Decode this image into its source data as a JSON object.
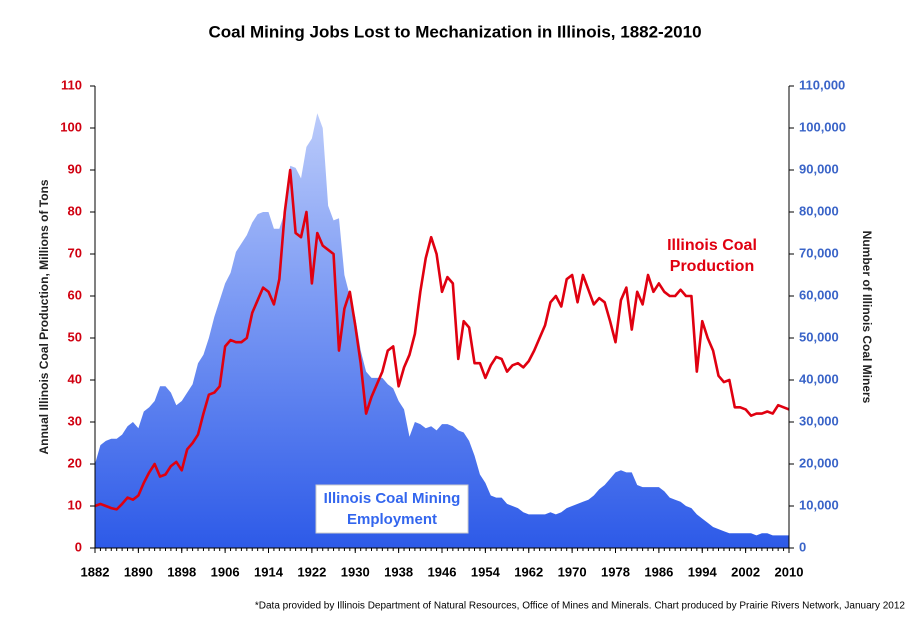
{
  "chart_data": {
    "type": "line_area",
    "title": "Coal Mining Jobs Lost to Mechanization in Illinois, 1882-2010",
    "ylabel": "Annual Illinois Coal Production, Millions of Tons",
    "y2label": "Number of Illinois Coal Miners",
    "footnote": "*Data provided by Illinois Department of Natural Resources, Office of Mines and Minerals. Chart produced by Prairie Rivers Network, January 2012",
    "x": [
      1882,
      1883,
      1884,
      1885,
      1886,
      1887,
      1888,
      1889,
      1890,
      1891,
      1892,
      1893,
      1894,
      1895,
      1896,
      1897,
      1898,
      1899,
      1900,
      1901,
      1902,
      1903,
      1904,
      1905,
      1906,
      1907,
      1908,
      1909,
      1910,
      1911,
      1912,
      1913,
      1914,
      1915,
      1916,
      1917,
      1918,
      1919,
      1920,
      1921,
      1922,
      1923,
      1924,
      1925,
      1926,
      1927,
      1928,
      1929,
      1930,
      1931,
      1932,
      1933,
      1934,
      1935,
      1936,
      1937,
      1938,
      1939,
      1940,
      1941,
      1942,
      1943,
      1944,
      1945,
      1946,
      1947,
      1948,
      1949,
      1950,
      1951,
      1952,
      1953,
      1954,
      1955,
      1956,
      1957,
      1958,
      1959,
      1960,
      1961,
      1962,
      1963,
      1964,
      1965,
      1966,
      1967,
      1968,
      1969,
      1970,
      1971,
      1972,
      1973,
      1974,
      1975,
      1976,
      1977,
      1978,
      1979,
      1980,
      1981,
      1982,
      1983,
      1984,
      1985,
      1986,
      1987,
      1988,
      1989,
      1990,
      1991,
      1992,
      1993,
      1994,
      1995,
      1996,
      1997,
      1998,
      1999,
      2000,
      2001,
      2002,
      2003,
      2004,
      2005,
      2006,
      2007,
      2008,
      2009,
      2010
    ],
    "xlim": [
      1882,
      2010
    ],
    "xticks": [
      1882,
      1890,
      1898,
      1906,
      1914,
      1922,
      1930,
      1938,
      1946,
      1954,
      1962,
      1970,
      1978,
      1986,
      1994,
      2002,
      2010
    ],
    "ylim": [
      0,
      110
    ],
    "yticks": [
      0,
      10,
      20,
      30,
      40,
      50,
      60,
      70,
      80,
      90,
      100,
      110
    ],
    "y2lim": [
      0,
      110000
    ],
    "y2ticks": [
      0,
      {
        "value": 10000,
        "label": "10,000"
      },
      {
        "value": 20000,
        "label": "20,000"
      },
      {
        "value": 30000,
        "label": "30,000"
      },
      {
        "value": 40000,
        "label": "40,000"
      },
      {
        "value": 50000,
        "label": "50,000"
      },
      {
        "value": 60000,
        "label": "60,000"
      },
      {
        "value": 70000,
        "label": "70,000"
      },
      {
        "value": 80000,
        "label": "80,000"
      },
      {
        "value": 90000,
        "label": "90,000"
      },
      {
        "value": 100000,
        "label": "100,000"
      },
      {
        "value": 110000,
        "label": "110,000"
      }
    ],
    "series": [
      {
        "label_lines": [
          "Illinois Coal",
          "Production"
        ],
        "color": "#e00010",
        "style": "line",
        "values": [
          10,
          10.5,
          10,
          9.5,
          9.2,
          10.5,
          12,
          11.5,
          12.5,
          15.5,
          18,
          20,
          17,
          17.5,
          19.5,
          20.5,
          18.5,
          23.5,
          25,
          27,
          32,
          36.5,
          37,
          38.5,
          48,
          49.5,
          49,
          49,
          50,
          56,
          59,
          62,
          61,
          58,
          64,
          80,
          90,
          75,
          74,
          80,
          63,
          75,
          72,
          71,
          70,
          47,
          57,
          61,
          53,
          44,
          32,
          36,
          39,
          42,
          47,
          48,
          38.5,
          43,
          46,
          51,
          61,
          69,
          74,
          70,
          61,
          64.5,
          63,
          45,
          54,
          52.5,
          44,
          44,
          40.5,
          43.5,
          45.5,
          45,
          42,
          43.5,
          44,
          43,
          44.5,
          47,
          50,
          53,
          58.5,
          60,
          57.5,
          64,
          65,
          58.5,
          65,
          61.5,
          58,
          59.5,
          58.5,
          54,
          49,
          59,
          62,
          52,
          61,
          58,
          65,
          61,
          63,
          61,
          60,
          60,
          61.5,
          60,
          60,
          42,
          54,
          50,
          47,
          41,
          39.5,
          40,
          33.5,
          33.5,
          33,
          31.5,
          32,
          32,
          32.5,
          32,
          34,
          33.5,
          33
        ]
      },
      {
        "label_lines": [
          "Illinois Coal Mining",
          "Employment"
        ],
        "color": "#3366ee",
        "style": "area",
        "axis": "y2",
        "values": [
          20000,
          24500,
          25500,
          26000,
          26000,
          27000,
          29000,
          30000,
          28500,
          32500,
          33500,
          35000,
          38500,
          38500,
          37000,
          34000,
          35000,
          37000,
          39000,
          44000,
          46000,
          50000,
          55000,
          59000,
          63000,
          65500,
          70500,
          72500,
          74500,
          77500,
          79500,
          80000,
          80000,
          76000,
          76000,
          80000,
          91000,
          90500,
          88000,
          95500,
          97500,
          103500,
          100000,
          81500,
          78000,
          78500,
          65000,
          60000,
          55000,
          47000,
          42000,
          40500,
          40500,
          40500,
          39000,
          38000,
          35000,
          33000,
          26500,
          30000,
          29500,
          28500,
          29000,
          28000,
          29500,
          29500,
          29000,
          28000,
          27500,
          25500,
          22000,
          17500,
          15500,
          12500,
          12000,
          12000,
          10500,
          10000,
          9500,
          8500,
          8000,
          8000,
          8000,
          8000,
          8500,
          8000,
          8500,
          9500,
          10000,
          10500,
          11000,
          11500,
          12500,
          14000,
          15000,
          16500,
          18000,
          18500,
          18000,
          18000,
          15000,
          14500,
          14500,
          14500,
          14500,
          13500,
          12000,
          11500,
          11000,
          10000,
          9500,
          8000,
          7000,
          6000,
          5000,
          4500,
          4000,
          3500,
          3500,
          3500,
          3500,
          3500,
          3000,
          3500,
          3500,
          3000,
          3000,
          3000,
          3000
        ]
      }
    ]
  }
}
